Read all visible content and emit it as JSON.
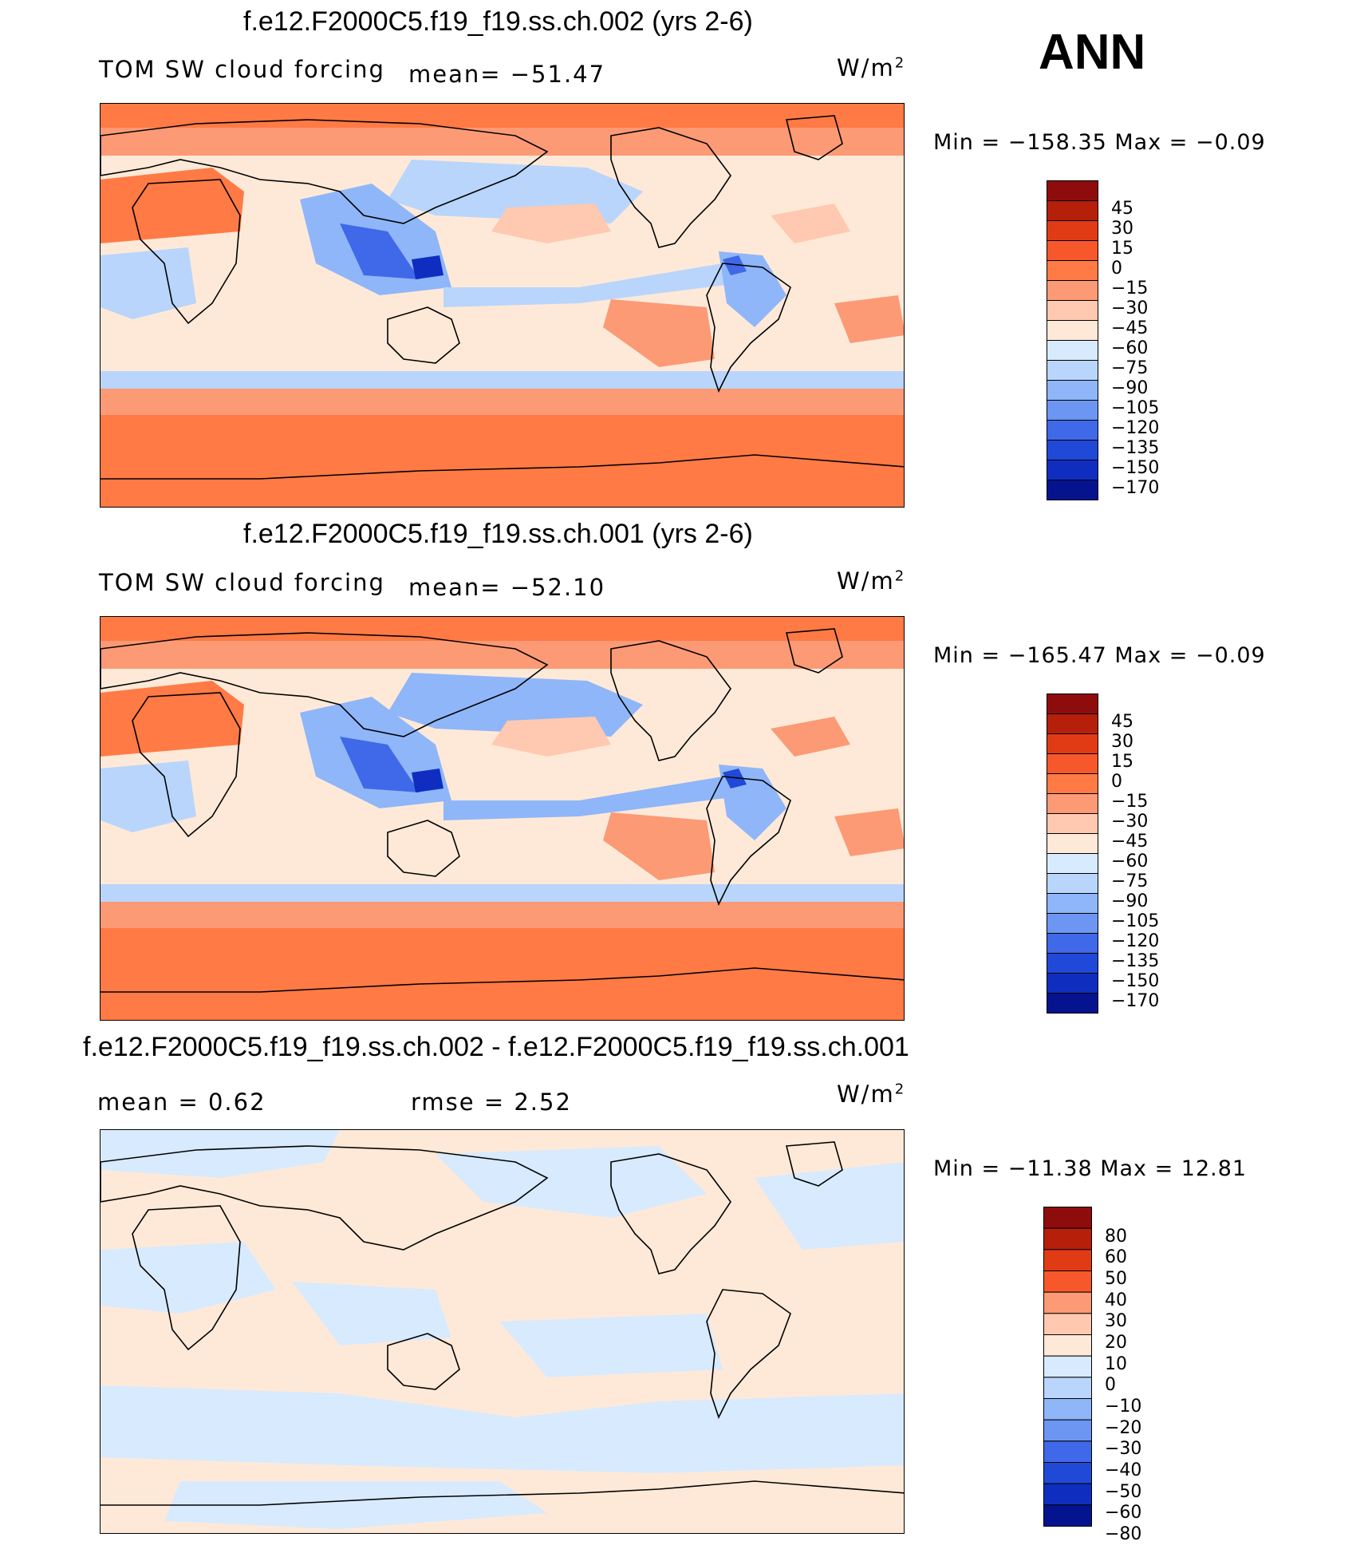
{
  "season": "ANN",
  "colors": {
    "seq_main": [
      "#8f0c0c",
      "#b61f0a",
      "#e13b16",
      "#f7582b",
      "#ff7a45",
      "#fb9a75",
      "#fec9b0",
      "#fee9d8",
      "#d8eafd",
      "#b9d5fb",
      "#8fb6f8",
      "#6d96f2",
      "#3f69e8",
      "#2149d7",
      "#0f2ec0",
      "#06138f"
    ],
    "seq_diff": [
      "#8f0c0c",
      "#b61f0a",
      "#e13b16",
      "#f7582b",
      "#fb9a75",
      "#fec9b0",
      "#fee9d8",
      "#d8eafd",
      "#b9d5fb",
      "#8fb6f8",
      "#6d96f2",
      "#3f69e8",
      "#2149d7",
      "#0f2ec0",
      "#06138f"
    ]
  },
  "panels": [
    {
      "title": "f.e12.F2000C5.f19_f19.ss.ch.002 (yrs 2-6)",
      "variable": "TOM SW cloud forcing",
      "mean": "mean= −51.47",
      "units": "W/m",
      "units_sup": "2",
      "minmax": "Min = −158.35 Max = −0.09",
      "levels": [
        "45",
        "30",
        "15",
        "0",
        "−15",
        "−30",
        "−45",
        "−60",
        "−75",
        "−90",
        "−105",
        "−120",
        "−135",
        "−150",
        "−170"
      ],
      "palette": "seq_main"
    },
    {
      "title": "f.e12.F2000C5.f19_f19.ss.ch.001 (yrs 2-6)",
      "variable": "TOM SW cloud forcing",
      "mean": "mean= −52.10",
      "units": "W/m",
      "units_sup": "2",
      "minmax": "Min = −165.47 Max = −0.09",
      "levels": [
        "45",
        "30",
        "15",
        "0",
        "−15",
        "−30",
        "−45",
        "−60",
        "−75",
        "−90",
        "−105",
        "−120",
        "−135",
        "−150",
        "−170"
      ],
      "palette": "seq_main"
    },
    {
      "title": "f.e12.F2000C5.f19_f19.ss.ch.002 - f.e12.F2000C5.f19_f19.ss.ch.001",
      "mean": "mean =    0.62",
      "rmse": "rmse =    2.52",
      "units": "W/m",
      "units_sup": "2",
      "minmax": "Min = −11.38 Max =   12.81",
      "levels": [
        "80",
        "60",
        "50",
        "40",
        "30",
        "20",
        "10",
        "0",
        "−10",
        "−20",
        "−30",
        "−40",
        "−50",
        "−60",
        "−80"
      ],
      "palette": "seq_diff"
    }
  ]
}
